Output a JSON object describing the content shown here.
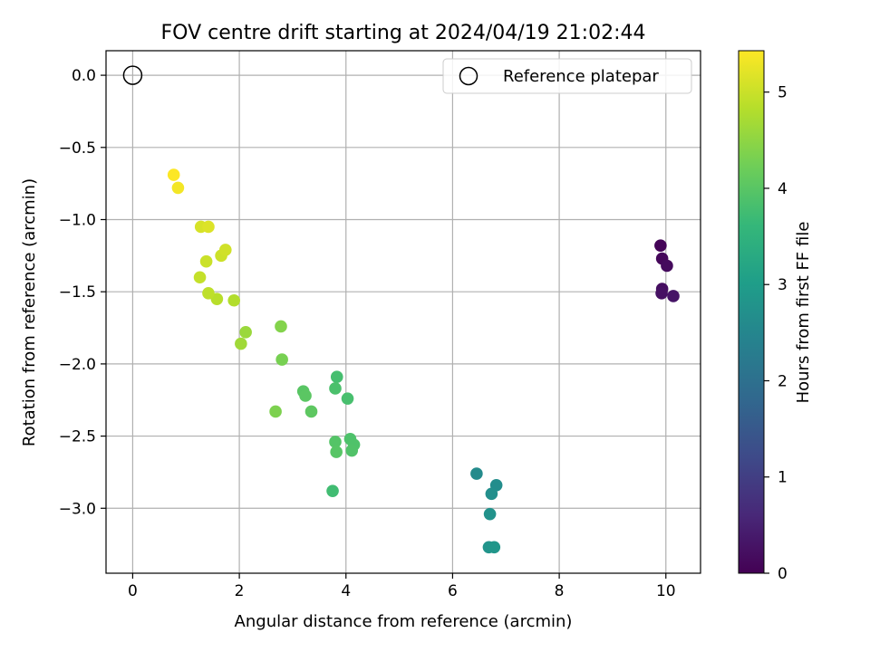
{
  "chart_data": {
    "type": "scatter",
    "title": "FOV centre drift starting at 2024/04/19 21:02:44",
    "xlabel": "Angular distance from reference (arcmin)",
    "ylabel": "Rotation from reference (arcmin)",
    "xlim": [
      -0.5,
      10.65
    ],
    "ylim": [
      -3.45,
      0.17
    ],
    "xticks": [
      0,
      2,
      4,
      6,
      8,
      10
    ],
    "yticks": [
      0.0,
      -0.5,
      -1.0,
      -1.5,
      -2.0,
      -2.5,
      -3.0
    ],
    "xtick_labels": [
      "0",
      "2",
      "4",
      "6",
      "8",
      "10"
    ],
    "ytick_labels": [
      "0.0",
      "−0.5",
      "−1.0",
      "−1.5",
      "−2.0",
      "−2.5",
      "−3.0"
    ],
    "grid": true,
    "legend": {
      "placement": "top-right",
      "entries": [
        "Reference platepar"
      ]
    },
    "reference_point": {
      "x": 0,
      "y": 0,
      "label": "Reference platepar"
    },
    "colorbar": {
      "label": "Hours from first FF file",
      "range": [
        0,
        5.43
      ],
      "ticks": [
        0,
        1,
        2,
        3,
        4,
        5
      ],
      "tick_labels": [
        "0",
        "1",
        "2",
        "3",
        "4",
        "5"
      ],
      "colormap": "viridis",
      "colors": [
        "#440154",
        "#482878",
        "#3e4a89",
        "#31688e",
        "#26828e",
        "#1f9e89",
        "#35b779",
        "#6ece58",
        "#b5de2b",
        "#fde725"
      ]
    },
    "points": [
      {
        "x": 9.9,
        "y": -1.18,
        "c": 0.05
      },
      {
        "x": 9.93,
        "y": -1.27,
        "c": 0.1
      },
      {
        "x": 10.02,
        "y": -1.32,
        "c": 0.15
      },
      {
        "x": 9.93,
        "y": -1.48,
        "c": 0.2
      },
      {
        "x": 9.92,
        "y": -1.51,
        "c": 0.25
      },
      {
        "x": 10.14,
        "y": -1.53,
        "c": 0.3
      },
      {
        "x": 6.45,
        "y": -2.76,
        "c": 2.6
      },
      {
        "x": 6.82,
        "y": -2.84,
        "c": 2.65
      },
      {
        "x": 6.73,
        "y": -2.9,
        "c": 2.7
      },
      {
        "x": 6.7,
        "y": -3.04,
        "c": 2.75
      },
      {
        "x": 6.68,
        "y": -3.27,
        "c": 2.8
      },
      {
        "x": 6.78,
        "y": -3.27,
        "c": 2.85
      },
      {
        "x": 3.75,
        "y": -2.88,
        "c": 3.75
      },
      {
        "x": 3.83,
        "y": -2.09,
        "c": 3.8
      },
      {
        "x": 4.03,
        "y": -2.24,
        "c": 3.82
      },
      {
        "x": 3.8,
        "y": -2.17,
        "c": 3.85
      },
      {
        "x": 4.08,
        "y": -2.52,
        "c": 3.88
      },
      {
        "x": 4.15,
        "y": -2.56,
        "c": 3.9
      },
      {
        "x": 4.11,
        "y": -2.6,
        "c": 3.92
      },
      {
        "x": 3.8,
        "y": -2.54,
        "c": 3.95
      },
      {
        "x": 3.82,
        "y": -2.61,
        "c": 3.98
      },
      {
        "x": 3.2,
        "y": -2.19,
        "c": 4.0
      },
      {
        "x": 3.24,
        "y": -2.22,
        "c": 4.02
      },
      {
        "x": 3.35,
        "y": -2.33,
        "c": 4.05
      },
      {
        "x": 2.8,
        "y": -1.97,
        "c": 4.3
      },
      {
        "x": 2.68,
        "y": -2.33,
        "c": 4.35
      },
      {
        "x": 2.78,
        "y": -1.74,
        "c": 4.4
      },
      {
        "x": 2.12,
        "y": -1.78,
        "c": 4.6
      },
      {
        "x": 2.03,
        "y": -1.86,
        "c": 4.65
      },
      {
        "x": 1.9,
        "y": -1.56,
        "c": 4.8
      },
      {
        "x": 1.58,
        "y": -1.55,
        "c": 4.85
      },
      {
        "x": 1.42,
        "y": -1.51,
        "c": 4.9
      },
      {
        "x": 1.26,
        "y": -1.4,
        "c": 4.95
      },
      {
        "x": 1.38,
        "y": -1.29,
        "c": 5.0
      },
      {
        "x": 1.66,
        "y": -1.25,
        "c": 5.02
      },
      {
        "x": 1.74,
        "y": -1.21,
        "c": 5.05
      },
      {
        "x": 1.28,
        "y": -1.05,
        "c": 5.1
      },
      {
        "x": 1.42,
        "y": -1.05,
        "c": 5.15
      },
      {
        "x": 0.85,
        "y": -0.78,
        "c": 5.35
      },
      {
        "x": 0.77,
        "y": -0.69,
        "c": 5.42
      }
    ]
  }
}
